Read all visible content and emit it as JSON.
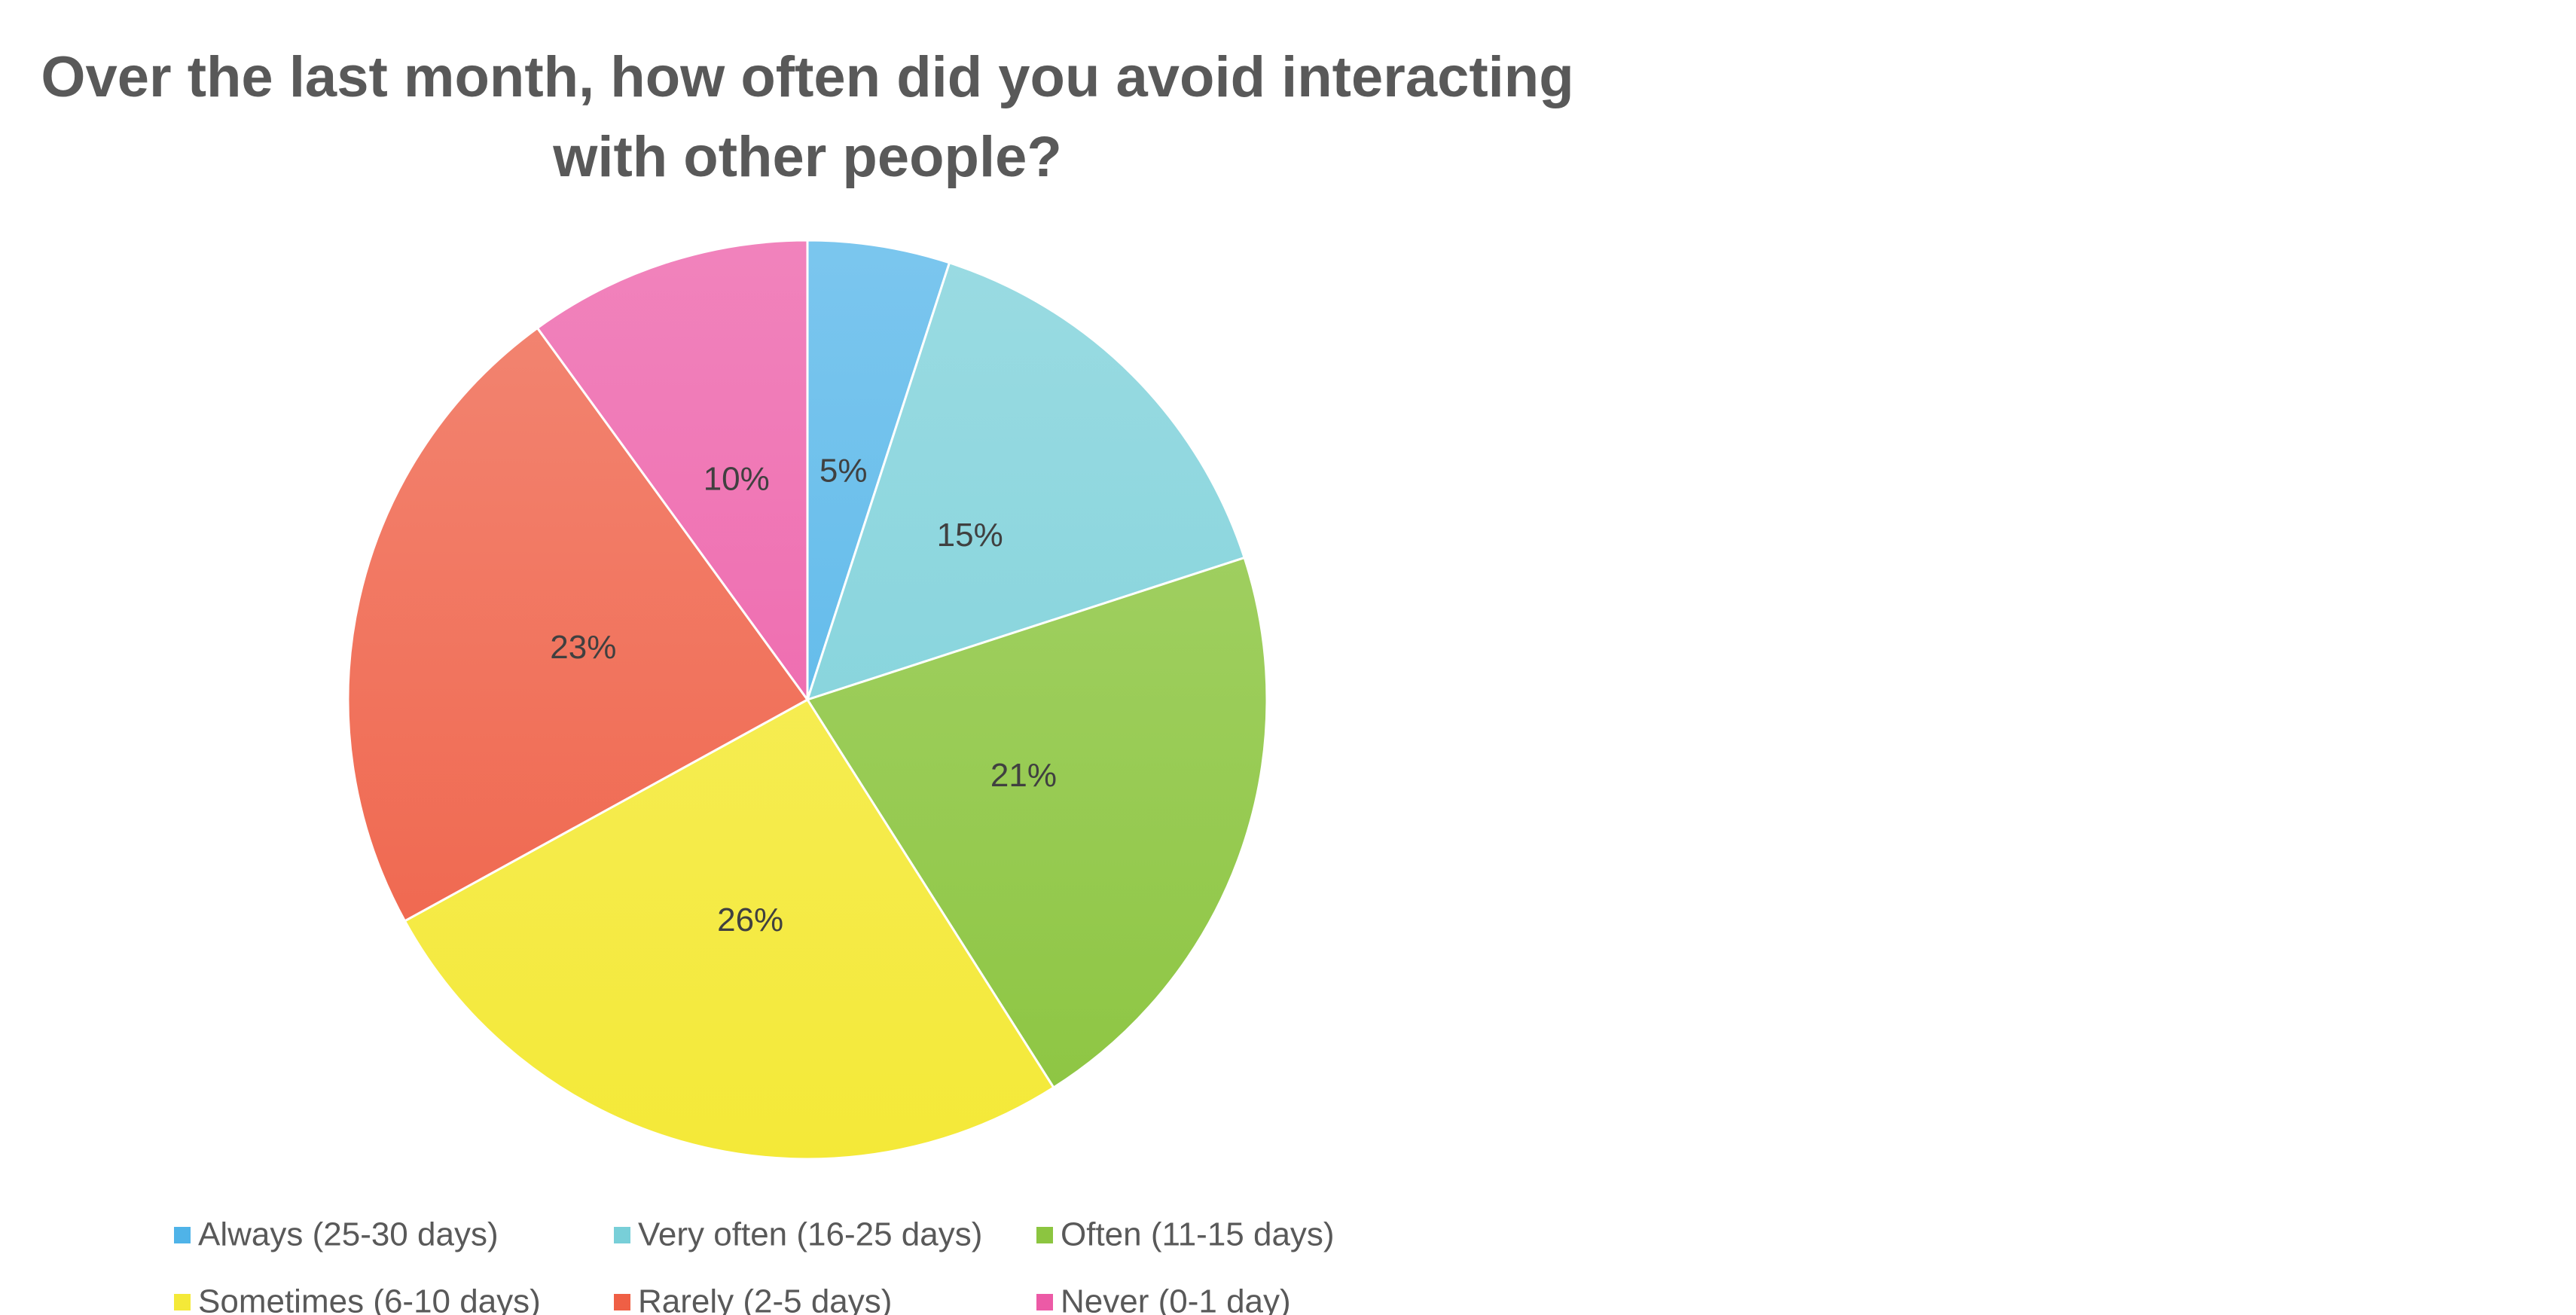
{
  "chart_data": {
    "type": "pie",
    "title": "Over the last month, how often did you avoid interacting with other people?",
    "categories": [
      "Always (25-30 days)",
      "Very often (16-25 days)",
      "Often (11-15 days)",
      "Sometimes (6-10 days)",
      "Rarely (2-5 days)",
      "Never (0-1 day)"
    ],
    "values": [
      5,
      15,
      21,
      26,
      23,
      10
    ],
    "value_labels": [
      "5%",
      "15%",
      "21%",
      "26%",
      "23%",
      "10%"
    ],
    "colors": [
      "#4fb3e8",
      "#78cfd8",
      "#8cc540",
      "#f4e938",
      "#ef5f45",
      "#ec5aa6"
    ],
    "legend": "bottom"
  }
}
